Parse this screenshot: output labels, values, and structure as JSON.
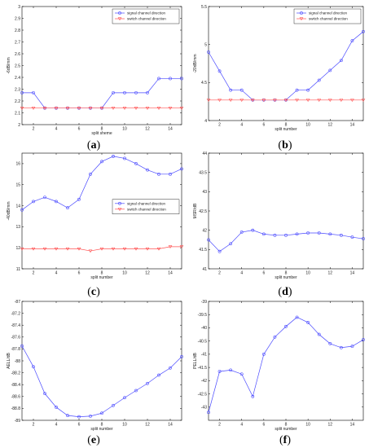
{
  "colors": {
    "signal": "#4a4aff",
    "switch": "#ff5555",
    "frame": "#000000"
  },
  "chart_data": [
    {
      "panel_label": "a",
      "type": "line",
      "xlabel": "split    sheme",
      "ylabel": "-6dB/mm",
      "xlim": [
        1,
        15
      ],
      "ylim": [
        2,
        3
      ],
      "xticks": [
        2,
        4,
        6,
        8,
        10,
        12,
        14
      ],
      "yticks": [
        2,
        2.1,
        2.2,
        2.3,
        2.4,
        2.5,
        2.6,
        2.7,
        2.8,
        2.9,
        3
      ],
      "x": [
        1,
        2,
        3,
        4,
        5,
        6,
        7,
        8,
        9,
        10,
        11,
        12,
        13,
        14,
        15
      ],
      "legend": "top-right",
      "series": [
        {
          "name": "signal channel direction",
          "marker": "circle",
          "values": [
            2.27,
            2.27,
            2.14,
            2.14,
            2.14,
            2.14,
            2.14,
            2.14,
            2.27,
            2.27,
            2.27,
            2.27,
            2.39,
            2.39,
            2.39
          ]
        },
        {
          "name": "switch channel direction",
          "marker": "triangle-down",
          "values": [
            2.14,
            2.14,
            2.14,
            2.14,
            2.14,
            2.14,
            2.14,
            2.14,
            2.14,
            2.14,
            2.14,
            2.14,
            2.14,
            2.14,
            2.14
          ]
        }
      ]
    },
    {
      "panel_label": "b",
      "type": "line",
      "xlabel": "split number",
      "ylabel": "-20dB/mm",
      "xlim": [
        1,
        15
      ],
      "ylim": [
        4,
        5.5
      ],
      "xticks": [
        2,
        4,
        6,
        8,
        10,
        12,
        14
      ],
      "yticks": [
        4,
        4.5,
        5,
        5.5
      ],
      "x": [
        1,
        2,
        3,
        4,
        5,
        6,
        7,
        8,
        9,
        10,
        11,
        12,
        13,
        14,
        15
      ],
      "legend": "top-right",
      "series": [
        {
          "name": "signal channel direction",
          "marker": "circle",
          "values": [
            4.9,
            4.65,
            4.4,
            4.4,
            4.27,
            4.27,
            4.27,
            4.27,
            4.4,
            4.4,
            4.53,
            4.66,
            4.79,
            5.05,
            5.17
          ]
        },
        {
          "name": "switch channel direction",
          "marker": "triangle-down",
          "values": [
            4.27,
            4.27,
            4.27,
            4.27,
            4.27,
            4.27,
            4.27,
            4.27,
            4.27,
            4.27,
            4.27,
            4.27,
            4.27,
            4.27,
            4.27
          ]
        }
      ]
    },
    {
      "panel_label": "c",
      "type": "line",
      "xlabel": "split number",
      "ylabel": "-40dB/mm",
      "xlim": [
        1,
        15
      ],
      "ylim": [
        11,
        16.5
      ],
      "xticks": [
        2,
        4,
        6,
        8,
        10,
        12,
        14
      ],
      "yticks": [
        11,
        12,
        13,
        14,
        15,
        16
      ],
      "x": [
        1,
        2,
        3,
        4,
        5,
        6,
        7,
        8,
        9,
        10,
        11,
        12,
        13,
        14,
        15
      ],
      "legend": "middle-right",
      "series": [
        {
          "name": "signal channel direction",
          "marker": "circle",
          "values": [
            13.8,
            14.2,
            14.4,
            14.2,
            13.9,
            14.3,
            15.5,
            16.1,
            16.35,
            16.25,
            16.0,
            15.7,
            15.5,
            15.5,
            15.75
          ]
        },
        {
          "name": "switch channel direction",
          "marker": "triangle-down",
          "values": [
            11.95,
            11.95,
            11.95,
            11.95,
            11.95,
            11.95,
            11.85,
            11.95,
            11.95,
            11.95,
            11.95,
            11.95,
            11.95,
            12.05,
            12.05
          ]
        }
      ]
    },
    {
      "panel_label": "d",
      "type": "line",
      "xlabel": "split number",
      "ylabel": "MSR/dB",
      "xlim": [
        1,
        15
      ],
      "ylim": [
        41,
        44
      ],
      "xticks": [
        2,
        4,
        6,
        8,
        10,
        12,
        14
      ],
      "yticks": [
        41,
        41.5,
        42,
        42.5,
        43,
        43.5,
        44
      ],
      "x": [
        1,
        2,
        3,
        4,
        5,
        6,
        7,
        8,
        9,
        10,
        11,
        12,
        13,
        14,
        15
      ],
      "series": [
        {
          "name": "",
          "marker": "circle",
          "values": [
            41.75,
            41.45,
            41.65,
            41.95,
            42.0,
            41.9,
            41.87,
            41.87,
            41.9,
            41.93,
            41.93,
            41.9,
            41.87,
            41.82,
            41.78
          ]
        }
      ]
    },
    {
      "panel_label": "e",
      "type": "line",
      "xlabel": "split number",
      "ylabel": "AELL/dB",
      "xlim": [
        1,
        15
      ],
      "ylim": [
        -89,
        -87
      ],
      "xticks": [
        2,
        4,
        6,
        8,
        10,
        12,
        14
      ],
      "yticks": [
        -87,
        -87.2,
        -87.4,
        -87.6,
        -87.8,
        -88,
        -88.2,
        -88.4,
        -88.6,
        -88.8,
        -89
      ],
      "x": [
        1,
        2,
        3,
        4,
        5,
        6,
        7,
        8,
        9,
        10,
        11,
        12,
        13,
        14,
        15
      ],
      "series": [
        {
          "name": "",
          "marker": "circle",
          "values": [
            -87.75,
            -88.1,
            -88.55,
            -88.78,
            -88.92,
            -88.94,
            -88.93,
            -88.88,
            -88.75,
            -88.62,
            -88.5,
            -88.38,
            -88.24,
            -88.12,
            -87.93
          ]
        }
      ]
    },
    {
      "panel_label": "f",
      "type": "line",
      "xlabel": "split number",
      "ylabel": "PELL/dB",
      "xlim": [
        1,
        15
      ],
      "ylim": [
        -43.5,
        -39
      ],
      "xticks": [
        2,
        4,
        6,
        8,
        10,
        12,
        14
      ],
      "yticks": [
        -39,
        -39.5,
        -40,
        -40.5,
        -41,
        -41.5,
        -42,
        -42.5,
        -43
      ],
      "x": [
        1,
        2,
        3,
        4,
        5,
        6,
        7,
        8,
        9,
        10,
        11,
        12,
        13,
        14,
        15
      ],
      "series": [
        {
          "name": "",
          "marker": "circle",
          "values": [
            -43.2,
            -41.65,
            -41.6,
            -41.75,
            -42.6,
            -41.0,
            -40.35,
            -39.95,
            -39.6,
            -39.8,
            -40.25,
            -40.6,
            -40.75,
            -40.7,
            -40.45
          ]
        }
      ]
    }
  ]
}
